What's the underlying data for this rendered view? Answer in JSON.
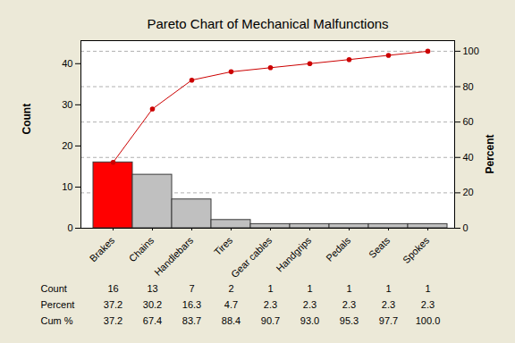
{
  "chart_data": {
    "type": "bar",
    "title": "Pareto Chart of Mechanical Malfunctions",
    "categories": [
      "Brakes",
      "Chains",
      "Handlebars",
      "Tires",
      "Gear cables",
      "Handgrips",
      "Pedals",
      "Seats",
      "Spokes"
    ],
    "series": [
      {
        "name": "Count",
        "type": "bar",
        "colors": [
          "#ff0000",
          "#c0c0c0",
          "#c0c0c0",
          "#c0c0c0",
          "#c0c0c0",
          "#c0c0c0",
          "#c0c0c0",
          "#c0c0c0",
          "#c0c0c0"
        ],
        "values": [
          16,
          13,
          7,
          2,
          1,
          1,
          1,
          1,
          1
        ]
      },
      {
        "name": "Cum %",
        "type": "line",
        "axis": "y2",
        "color": "#cc0000",
        "marker": "circle",
        "values": [
          37.2,
          67.4,
          83.7,
          88.4,
          90.7,
          93.0,
          95.3,
          97.7,
          100.0
        ]
      }
    ],
    "ylabel": "Count",
    "y2label": "Percent",
    "ylim": [
      0,
      45.6
    ],
    "yticks": [
      0,
      10,
      20,
      30,
      40
    ],
    "y2lim": [
      0,
      106
    ],
    "y2ticks": [
      0,
      20,
      40,
      60,
      80,
      100
    ],
    "grid": true,
    "table": {
      "rows": [
        {
          "label": "Count",
          "values": [
            16,
            13,
            7,
            2,
            1,
            1,
            1,
            1,
            1
          ]
        },
        {
          "label": "Percent",
          "values": [
            37.2,
            30.2,
            16.3,
            4.7,
            2.3,
            2.3,
            2.3,
            2.3,
            2.3
          ]
        },
        {
          "label": "Cum %",
          "values": [
            37.2,
            67.4,
            83.7,
            88.4,
            90.7,
            93.0,
            95.3,
            97.7,
            100.0
          ],
          "value_labels": [
            "37.2",
            "67.4",
            "83.7",
            "88.4",
            "90.7",
            "93.0",
            "95.3",
            "97.7",
            "100.0"
          ]
        }
      ]
    }
  }
}
